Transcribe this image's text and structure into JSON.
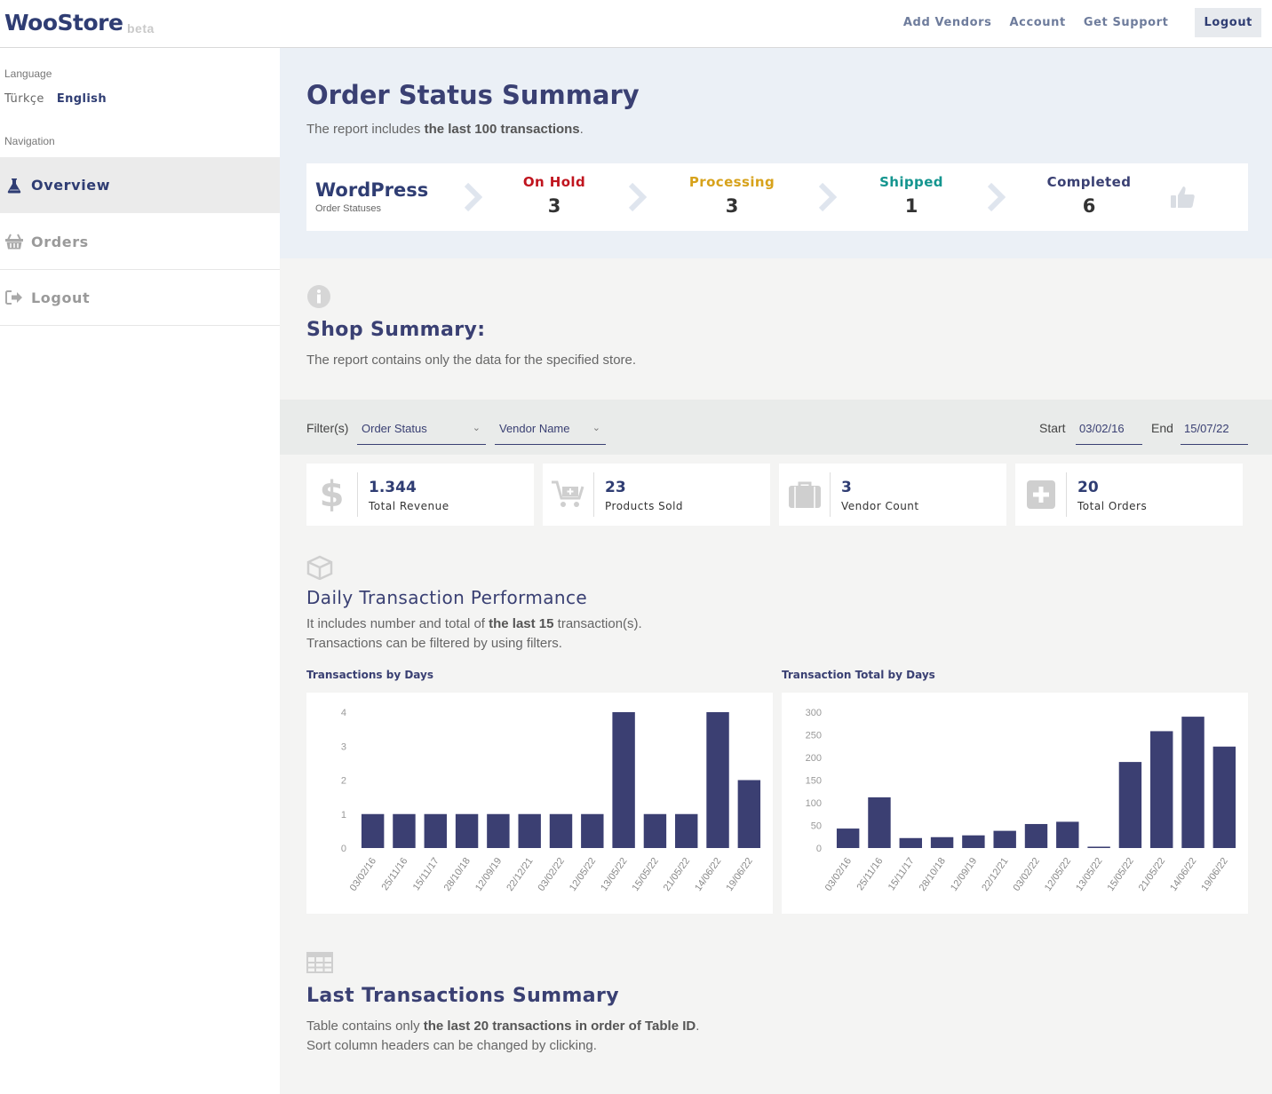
{
  "header": {
    "brand": "WooStore",
    "brand_tag": "beta",
    "nav": [
      "Add Vendors",
      "Account",
      "Get Support"
    ],
    "logout": "Logout"
  },
  "sidebar": {
    "language_label": "Language",
    "languages": [
      "Türkçe",
      "English"
    ],
    "active_language": "English",
    "navigation_label": "Navigation",
    "items": [
      {
        "label": "Overview",
        "icon": "flask-icon",
        "active": true
      },
      {
        "label": "Orders",
        "icon": "basket-icon",
        "active": false
      },
      {
        "label": "Logout",
        "icon": "sign-out-icon",
        "active": false
      }
    ]
  },
  "order_summary": {
    "title": "Order Status Summary",
    "subtitle_pre": "The report includes ",
    "subtitle_bold": "the last 100 transactions",
    "subtitle_post": ".",
    "platform": "WordPress",
    "platform_sub": "Order Statuses",
    "statuses": [
      {
        "label": "On Hold",
        "count": "3",
        "color": "#c0151f"
      },
      {
        "label": "Processing",
        "count": "3",
        "color": "#d7a21b"
      },
      {
        "label": "Shipped",
        "count": "1",
        "color": "#14958f"
      },
      {
        "label": "Completed",
        "count": "6",
        "color": "#3a4073"
      }
    ]
  },
  "shop_summary": {
    "title": "Shop Summary:",
    "subtitle": "The report contains only the data for the specified store."
  },
  "filters": {
    "label": "Filter(s)",
    "order_status": "Order Status",
    "vendor_name": "Vendor Name",
    "start_label": "Start",
    "start_value": "03/02/16",
    "end_label": "End",
    "end_value": "15/07/22"
  },
  "kpis": [
    {
      "value": "1.344",
      "label": "Total Revenue",
      "icon": "dollar-icon"
    },
    {
      "value": "23",
      "label": "Products Sold",
      "icon": "cart-plus-icon"
    },
    {
      "value": "3",
      "label": "Vendor Count",
      "icon": "briefcase-icon"
    },
    {
      "value": "20",
      "label": "Total Orders",
      "icon": "plus-square-icon"
    }
  ],
  "daily": {
    "title": "Daily Transaction Performance",
    "line1_pre": "It includes number and total of ",
    "line1_bold": "the last 15",
    "line1_post": " transaction(s).",
    "line2": "Transactions can be filtered by using filters."
  },
  "last_tx": {
    "title": "Last Transactions Summary",
    "line1_pre": "Table contains only ",
    "line1_bold": "the last 20 transactions in order of Table ID",
    "line1_post": ".",
    "line2": "Sort column headers can be changed by clicking."
  },
  "chart_data": [
    {
      "type": "bar",
      "title": "Transactions by Days",
      "categories": [
        "03/02/16",
        "25/11/16",
        "15/11/17",
        "28/10/18",
        "12/09/19",
        "22/12/21",
        "03/02/22",
        "12/05/22",
        "13/05/22",
        "15/05/22",
        "21/05/22",
        "14/06/22",
        "19/06/22"
      ],
      "values": [
        1,
        1,
        1,
        1,
        1,
        1,
        1,
        1,
        4,
        1,
        1,
        4,
        2
      ],
      "ylim": [
        0,
        4
      ],
      "yticks": [
        0,
        1,
        2,
        3,
        4
      ],
      "color": "#3b3f72"
    },
    {
      "type": "bar",
      "title": "Transaction Total by Days",
      "categories": [
        "03/02/16",
        "25/11/16",
        "15/11/17",
        "28/10/18",
        "12/09/19",
        "22/12/21",
        "03/02/22",
        "12/05/22",
        "13/05/22",
        "15/05/22",
        "21/05/22",
        "14/06/22",
        "19/06/22"
      ],
      "values": [
        43,
        112,
        22,
        24,
        28,
        38,
        53,
        58,
        3,
        190,
        258,
        290,
        224
      ],
      "ylim": [
        0,
        300
      ],
      "yticks": [
        0,
        50,
        100,
        150,
        200,
        250,
        300
      ],
      "color": "#3b3f72"
    }
  ]
}
